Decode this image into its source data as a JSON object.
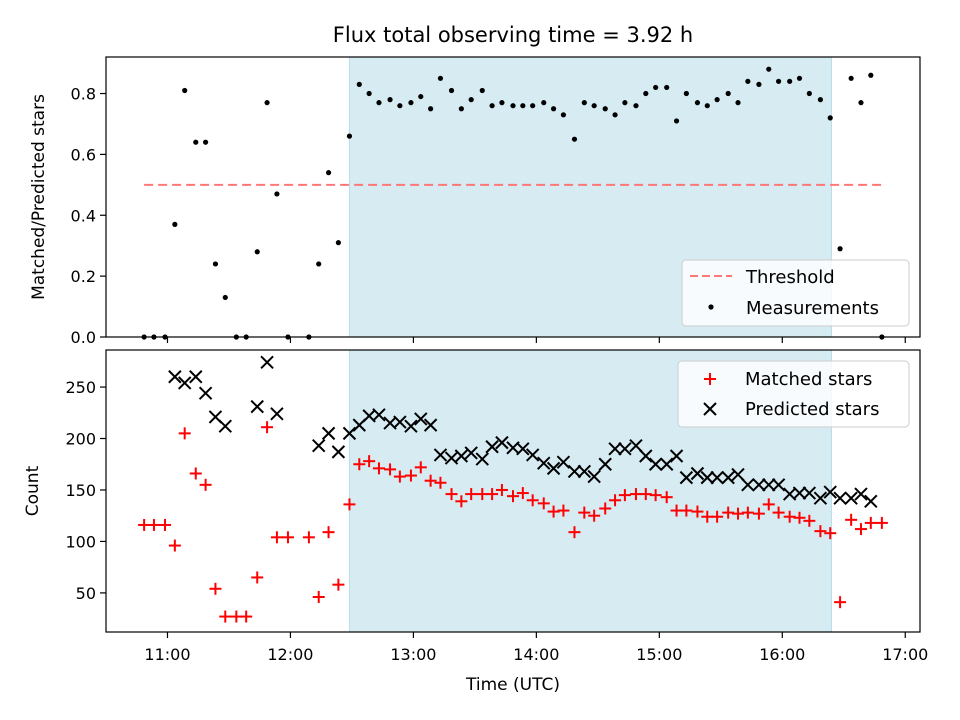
{
  "figure": {
    "title": "Flux total observing time = 3.92 h",
    "xlabel": "Time (UTC)",
    "xlim": [
      10.5,
      17.12
    ],
    "xticks": [
      11,
      12,
      13,
      14,
      15,
      16,
      17
    ],
    "xtick_labels": [
      "11:00",
      "12:00",
      "13:00",
      "14:00",
      "15:00",
      "16:00",
      "17:00"
    ],
    "shaded_interval": {
      "start": 12.48,
      "end": 16.4,
      "color": "#add8e6"
    },
    "chart_data": [
      {
        "type": "scatter",
        "panel": "top",
        "ylabel": "Matched/Predicted stars",
        "ylim": [
          0,
          0.92
        ],
        "yticks": [
          0.0,
          0.2,
          0.4,
          0.6,
          0.8
        ],
        "ytick_labels": [
          "0.0",
          "0.2",
          "0.4",
          "0.6",
          "0.8"
        ],
        "legend_position": "bottom-right",
        "threshold": {
          "label": "Threshold",
          "value": 0.5,
          "x_range": [
            10.81,
            16.82
          ],
          "color": "#ff7777"
        },
        "measurements": {
          "label": "Measurements",
          "color": "#000000",
          "x": [
            10.81,
            10.89,
            10.98,
            11.06,
            11.14,
            11.23,
            11.31,
            11.39,
            11.47,
            11.56,
            11.64,
            11.73,
            11.81,
            11.89,
            11.98,
            12.15,
            12.23,
            12.31,
            12.39,
            12.48,
            12.56,
            12.64,
            12.72,
            12.81,
            12.89,
            12.98,
            13.06,
            13.14,
            13.22,
            13.31,
            13.39,
            13.47,
            13.56,
            13.64,
            13.72,
            13.81,
            13.89,
            13.97,
            14.06,
            14.14,
            14.22,
            14.31,
            14.39,
            14.47,
            14.56,
            14.64,
            14.72,
            14.81,
            14.89,
            14.97,
            15.06,
            15.14,
            15.22,
            15.31,
            15.39,
            15.47,
            15.56,
            15.64,
            15.72,
            15.81,
            15.89,
            15.97,
            16.06,
            16.14,
            16.22,
            16.31,
            16.39,
            16.47,
            16.56,
            16.64,
            16.72,
            16.81
          ],
          "y": [
            0.0,
            0.0,
            0.0,
            0.37,
            0.81,
            0.64,
            0.64,
            0.24,
            0.13,
            0.0,
            0.0,
            0.28,
            0.77,
            0.47,
            0.0,
            0.0,
            0.24,
            0.54,
            0.31,
            0.66,
            0.83,
            0.8,
            0.77,
            0.78,
            0.76,
            0.77,
            0.79,
            0.75,
            0.85,
            0.81,
            0.75,
            0.78,
            0.81,
            0.76,
            0.77,
            0.76,
            0.76,
            0.76,
            0.77,
            0.75,
            0.73,
            0.65,
            0.77,
            0.76,
            0.75,
            0.73,
            0.77,
            0.76,
            0.8,
            0.82,
            0.82,
            0.71,
            0.8,
            0.77,
            0.76,
            0.78,
            0.8,
            0.77,
            0.84,
            0.83,
            0.88,
            0.84,
            0.84,
            0.85,
            0.8,
            0.78,
            0.72,
            0.29,
            0.85,
            0.77,
            0.86,
            0.0
          ]
        }
      },
      {
        "type": "scatter",
        "panel": "bottom",
        "ylabel": "Count",
        "ylim": [
          12,
          286
        ],
        "yticks": [
          50,
          100,
          150,
          200,
          250
        ],
        "ytick_labels": [
          "50",
          "100",
          "150",
          "200",
          "250"
        ],
        "legend_position": "top-right",
        "series": [
          {
            "name": "Matched stars",
            "marker": "plus",
            "color": "#ff0000",
            "x": [
              10.81,
              10.89,
              10.98,
              11.06,
              11.14,
              11.23,
              11.31,
              11.39,
              11.47,
              11.56,
              11.64,
              11.73,
              11.81,
              11.89,
              11.98,
              12.15,
              12.23,
              12.31,
              12.39,
              12.48,
              12.56,
              12.64,
              12.72,
              12.81,
              12.89,
              12.98,
              13.06,
              13.14,
              13.22,
              13.31,
              13.39,
              13.47,
              13.56,
              13.64,
              13.72,
              13.81,
              13.89,
              13.97,
              14.06,
              14.14,
              14.22,
              14.31,
              14.39,
              14.47,
              14.56,
              14.64,
              14.72,
              14.81,
              14.89,
              14.97,
              15.06,
              15.14,
              15.22,
              15.31,
              15.39,
              15.47,
              15.56,
              15.64,
              15.72,
              15.81,
              15.89,
              15.97,
              16.06,
              16.14,
              16.22,
              16.31,
              16.39,
              16.47,
              16.56,
              16.64,
              16.72,
              16.81
            ],
            "y": [
              116,
              116,
              116,
              96,
              205,
              166,
              155,
              54,
              27,
              27,
              27,
              65,
              211,
              104,
              104,
              104,
              46,
              109,
              58,
              136,
              175,
              178,
              171,
              170,
              163,
              164,
              172,
              159,
              157,
              146,
              139,
              146,
              146,
              146,
              150,
              144,
              147,
              140,
              137,
              129,
              130,
              109,
              128,
              125,
              132,
              140,
              145,
              146,
              146,
              145,
              143,
              130,
              130,
              129,
              124,
              124,
              128,
              127,
              128,
              127,
              136,
              128,
              124,
              123,
              120,
              110,
              108,
              41,
              121,
              112,
              118,
              118
            ]
          },
          {
            "name": "Predicted stars",
            "marker": "x",
            "color": "#000000",
            "x": [
              11.06,
              11.14,
              11.23,
              11.31,
              11.39,
              11.47,
              11.73,
              11.81,
              11.89,
              12.23,
              12.31,
              12.39,
              12.48,
              12.56,
              12.64,
              12.72,
              12.81,
              12.89,
              12.98,
              13.06,
              13.14,
              13.22,
              13.31,
              13.39,
              13.47,
              13.56,
              13.64,
              13.72,
              13.81,
              13.89,
              13.97,
              14.06,
              14.14,
              14.22,
              14.31,
              14.39,
              14.47,
              14.56,
              14.64,
              14.72,
              14.81,
              14.89,
              14.97,
              15.06,
              15.14,
              15.22,
              15.31,
              15.39,
              15.47,
              15.56,
              15.64,
              15.72,
              15.81,
              15.89,
              15.97,
              16.06,
              16.14,
              16.22,
              16.31,
              16.39,
              16.47,
              16.56,
              16.64,
              16.72
            ],
            "y": [
              260,
              254,
              260,
              244,
              221,
              212,
              231,
              274,
              224,
              193,
              205,
              187,
              205,
              213,
              222,
              223,
              215,
              216,
              212,
              219,
              213,
              184,
              181,
              183,
              186,
              180,
              192,
              196,
              191,
              190,
              184,
              176,
              171,
              177,
              168,
              168,
              163,
              175,
              190,
              190,
              193,
              183,
              175,
              175,
              183,
              162,
              166,
              162,
              162,
              162,
              165,
              155,
              155,
              155,
              155,
              146,
              147,
              147,
              142,
              148,
              142,
              142,
              146,
              139
            ]
          }
        ]
      }
    ]
  }
}
